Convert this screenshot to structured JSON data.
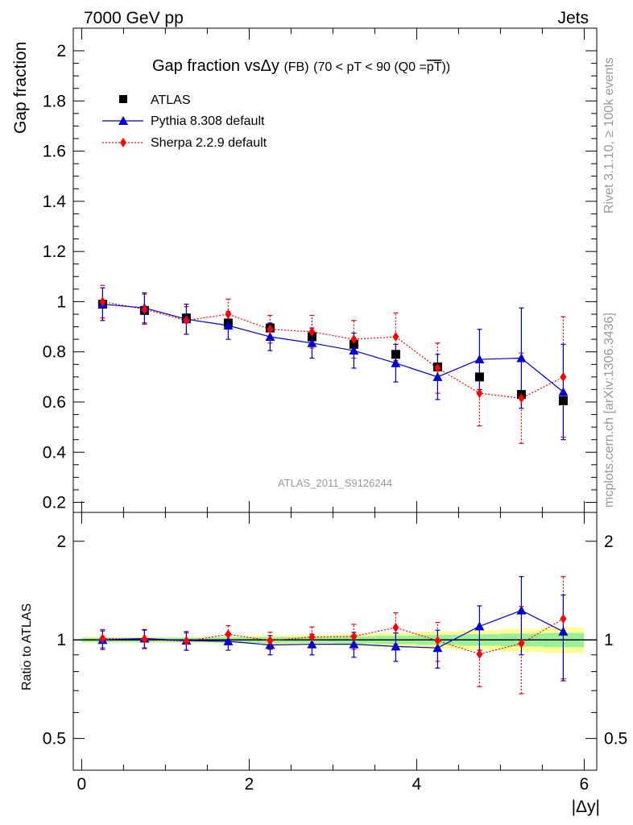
{
  "header": {
    "left": "7000 GeV pp",
    "right": "Jets"
  },
  "side_labels": {
    "rivet": "Rivet 3.1.10, ≥ 100k events",
    "mcplots": "mcplots.cern.ch [arXiv:1306.3436]"
  },
  "colors": {
    "atlas": "#000000",
    "pythia": "#0000cc",
    "sherpa": "#ff0000",
    "band_inner": "#99f099",
    "band_outer": "#ffff99"
  },
  "chart_data": [
    {
      "type": "scatter",
      "title_parts": {
        "main": "Gap fraction vs",
        "delta": "Δ",
        "var": "y",
        "tag": "(FB)",
        "range": "(70 < pT <  90 (Q0 =",
        "q0": "pT",
        "close": "))"
      },
      "watermark": "ATLAS_2011_S9126244",
      "ylabel": "Gap fraction",
      "xlim": [
        -0.1,
        6.15
      ],
      "ylim": [
        0.16,
        2.09
      ],
      "x_ticks": [
        0,
        2,
        4,
        6
      ],
      "y_ticks": [
        0.2,
        0.4,
        0.6,
        0.8,
        1,
        1.2,
        1.4,
        1.6,
        1.8,
        2
      ],
      "y_tick_labels": [
        "0.2",
        "0.4",
        "0.6",
        "0.8",
        "1",
        "1.2",
        "1.4",
        "1.6",
        "1.8",
        "2"
      ],
      "legend_position": "top-left",
      "x": [
        0.25,
        0.75,
        1.25,
        1.75,
        2.25,
        2.75,
        3.25,
        3.75,
        4.25,
        4.75,
        5.25,
        5.75
      ],
      "series": [
        {
          "name": "ATLAS",
          "marker": "square",
          "values": [
            0.99,
            0.965,
            0.935,
            0.915,
            0.895,
            0.86,
            0.83,
            0.79,
            0.74,
            0.7,
            0.63,
            0.605
          ]
        },
        {
          "name": "Pythia 8.308 default",
          "marker": "triangle",
          "values": [
            0.99,
            0.975,
            0.93,
            0.905,
            0.86,
            0.835,
            0.805,
            0.755,
            0.7,
            0.77,
            0.775,
            0.64
          ],
          "err": [
            0.065,
            0.06,
            0.06,
            0.055,
            0.055,
            0.06,
            0.07,
            0.075,
            0.09,
            0.12,
            0.2,
            0.19
          ]
        },
        {
          "name": "Sherpa 2.2.9 default",
          "marker": "diamond",
          "values": [
            1.0,
            0.97,
            0.925,
            0.95,
            0.89,
            0.88,
            0.85,
            0.86,
            0.735,
            0.635,
            0.615,
            0.7
          ],
          "err": [
            0.065,
            0.06,
            0.055,
            0.06,
            0.055,
            0.065,
            0.075,
            0.095,
            0.1,
            0.13,
            0.18,
            0.24
          ]
        }
      ]
    },
    {
      "type": "scatter",
      "ylabel": "Ratio to ATLAS",
      "xlabel": "|Δy|",
      "xlim": [
        -0.1,
        6.15
      ],
      "ylim": [
        0.4,
        2.45
      ],
      "log_y": true,
      "x_ticks": [
        0,
        2,
        4,
        6
      ],
      "y_ticks": [
        0.5,
        1,
        2
      ],
      "y_tick_labels": [
        "0.5",
        "1",
        "2"
      ],
      "reference": 1.0,
      "band_x_edges": [
        0,
        0.5,
        1,
        1.5,
        2,
        2.5,
        3,
        3.5,
        4,
        4.5,
        5,
        5.5,
        6
      ],
      "band_inner": [
        0.015,
        0.015,
        0.015,
        0.018,
        0.02,
        0.02,
        0.025,
        0.03,
        0.035,
        0.04,
        0.045,
        0.05
      ],
      "band_outer": [
        0.02,
        0.02,
        0.02,
        0.025,
        0.03,
        0.035,
        0.04,
        0.05,
        0.06,
        0.07,
        0.08,
        0.09
      ],
      "series": [
        {
          "name": "Pythia 8.308 default",
          "values": [
            1.0,
            1.01,
            0.995,
            0.99,
            0.965,
            0.97,
            0.97,
            0.955,
            0.945,
            1.1,
            1.23,
            1.06
          ],
          "err": [
            0.065,
            0.065,
            0.065,
            0.06,
            0.065,
            0.07,
            0.085,
            0.095,
            0.125,
            0.17,
            0.33,
            0.31
          ]
        },
        {
          "name": "Sherpa 2.2.9 default",
          "values": [
            1.01,
            1.005,
            0.99,
            1.04,
            0.995,
            1.02,
            1.025,
            1.09,
            0.995,
            0.905,
            0.975,
            1.16
          ],
          "err": [
            0.065,
            0.065,
            0.06,
            0.065,
            0.06,
            0.075,
            0.09,
            0.12,
            0.135,
            0.185,
            0.29,
            0.4
          ]
        }
      ]
    }
  ]
}
